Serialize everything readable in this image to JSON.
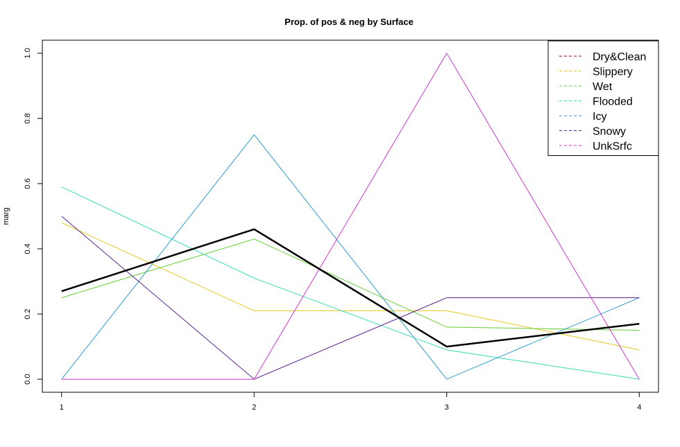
{
  "chart_data": {
    "type": "line",
    "title": "Prop. of pos & neg by Surface",
    "xlabel": "",
    "ylabel": "marg",
    "x": [
      1,
      2,
      3,
      4
    ],
    "xlim": [
      0.9,
      4.1
    ],
    "ylim": [
      -0.04,
      1.04
    ],
    "x_ticks": [
      1,
      2,
      3,
      4
    ],
    "y_ticks": [
      0.0,
      0.2,
      0.4,
      0.6,
      0.8,
      1.0
    ],
    "y_tick_labels": [
      "0.0",
      "0.2",
      "0.4",
      "0.6",
      "0.8",
      "1.0"
    ],
    "grid": false,
    "legend_position": "top-right",
    "series": [
      {
        "name": "Dry&Clean",
        "color": "#8B0000",
        "values": [
          0.27,
          0.46,
          0.1,
          0.17
        ]
      },
      {
        "name": "Slippery",
        "color": "#E6C619",
        "values": [
          0.48,
          0.21,
          0.21,
          0.09
        ]
      },
      {
        "name": "Wet",
        "color": "#66CC33",
        "values": [
          0.25,
          0.43,
          0.16,
          0.15
        ]
      },
      {
        "name": "Flooded",
        "color": "#33D9B5",
        "values": [
          0.59,
          0.31,
          0.09,
          0.0
        ]
      },
      {
        "name": "Icy",
        "color": "#2C9AC9",
        "values": [
          0.0,
          0.75,
          0.0,
          0.25
        ]
      },
      {
        "name": "Snowy",
        "color": "#5A1E8C",
        "values": [
          0.5,
          0.0,
          0.25,
          0.25
        ]
      },
      {
        "name": "UnkSrfc",
        "color": "#D633CC",
        "values": [
          0.0,
          0.0,
          1.0,
          0.0
        ]
      }
    ],
    "bold_overlay": {
      "color": "#000000",
      "values": [
        0.27,
        0.46,
        0.1,
        0.17
      ]
    }
  }
}
